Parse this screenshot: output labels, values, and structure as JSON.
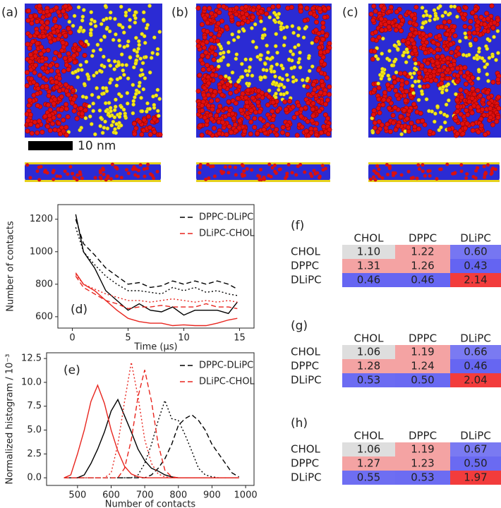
{
  "figure": {
    "panel_labels": [
      "(a)",
      "(b)",
      "(c)"
    ],
    "scale_bar": "10 nm"
  },
  "chart_data": [
    {
      "type": "line",
      "label": "(d)",
      "xlabel": "Time (μs)",
      "ylabel": "Number of contacts",
      "x": [
        0.3,
        1,
        2,
        3,
        4,
        5,
        6,
        7,
        8,
        9,
        10,
        11,
        12,
        13,
        14,
        14.8
      ],
      "xlim": [
        -1.3,
        16.3
      ],
      "xticks": [
        0,
        5,
        10,
        15
      ],
      "ylim": [
        530,
        1290
      ],
      "yticks": [
        600,
        800,
        1000,
        1200
      ],
      "legend": "upper right",
      "series": [
        {
          "name": "DPPC-DLiPC",
          "color": "#000000",
          "lines": [
            {
              "dash": "solid",
              "values": [
                1230,
                1000,
                900,
                760,
                700,
                640,
                680,
                640,
                630,
                660,
                610,
                640,
                640,
                640,
                620,
                690
              ]
            },
            {
              "dash": "dashed",
              "values": [
                1200,
                1050,
                980,
                900,
                850,
                800,
                810,
                780,
                790,
                820,
                800,
                820,
                800,
                820,
                800,
                770
              ]
            },
            {
              "dash": "dotted",
              "values": [
                1150,
                1000,
                920,
                850,
                800,
                760,
                760,
                750,
                740,
                780,
                760,
                780,
                750,
                760,
                740,
                730
              ]
            }
          ]
        },
        {
          "name": "DLiPC-CHOL",
          "color": "#e8251e",
          "lines": [
            {
              "dash": "solid",
              "values": [
                870,
                800,
                760,
                700,
                640,
                590,
                570,
                560,
                560,
                545,
                550,
                545,
                545,
                560,
                580,
                590
              ]
            },
            {
              "dash": "dashed",
              "values": [
                850,
                780,
                740,
                700,
                680,
                650,
                660,
                660,
                670,
                660,
                660,
                660,
                680,
                660,
                660,
                650
              ]
            },
            {
              "dash": "dotted",
              "values": [
                860,
                800,
                770,
                740,
                720,
                700,
                700,
                690,
                700,
                710,
                700,
                690,
                700,
                690,
                700,
                690
              ]
            }
          ]
        }
      ]
    },
    {
      "type": "line",
      "label": "(e)",
      "xlabel": "Number of contacts",
      "ylabel": "Normalized histogram / 10⁻³",
      "x": [
        460,
        480,
        500,
        520,
        540,
        560,
        580,
        600,
        620,
        640,
        660,
        680,
        700,
        720,
        740,
        760,
        780,
        800,
        820,
        840,
        860,
        880,
        900,
        920,
        940,
        960,
        980
      ],
      "xlim": [
        408,
        1025
      ],
      "xticks": [
        500,
        600,
        700,
        800,
        900,
        1000
      ],
      "ylim": [
        -0.8,
        13.1
      ],
      "yticks": [
        {
          "value": 0,
          "label": "0.0"
        },
        2.5,
        {
          "value": 5,
          "label": "5.0"
        },
        7.5,
        {
          "value": 10,
          "label": "10.0"
        },
        12.5
      ],
      "legend": "upper right",
      "series": [
        {
          "name": "DPPC-DLiPC",
          "color": "#000000",
          "lines": [
            {
              "dash": "solid",
              "values": [
                0,
                0,
                0,
                0.3,
                1.5,
                3.0,
                4.8,
                7.0,
                8.2,
                6.5,
                4.8,
                3.0,
                1.8,
                1.0,
                0.7,
                0.3,
                0.1,
                0,
                0,
                0,
                0,
                0,
                0,
                0,
                0,
                0,
                0
              ]
            },
            {
              "dash": "dashed",
              "values": [
                0,
                0,
                0,
                0,
                0,
                0,
                0,
                0,
                0,
                0,
                0,
                0,
                0,
                0.3,
                1.0,
                2.0,
                3.5,
                5.5,
                6.2,
                6.6,
                6.0,
                5.0,
                3.5,
                2.5,
                1.5,
                0.5,
                0.1
              ]
            },
            {
              "dash": "dotted",
              "values": [
                0,
                0,
                0,
                0,
                0,
                0,
                0,
                0,
                0,
                0,
                0,
                0.3,
                1.5,
                3.5,
                6.0,
                8.1,
                6.2,
                6.0,
                4.5,
                2.8,
                1.0,
                0.3,
                0.1,
                0,
                0,
                0,
                0
              ]
            }
          ]
        },
        {
          "name": "DLiPC-CHOL",
          "color": "#e8251e",
          "lines": [
            {
              "dash": "solid",
              "values": [
                0,
                0.3,
                2.5,
                5.0,
                8.0,
                9.7,
                7.8,
                5.0,
                2.8,
                1.2,
                0.4,
                0.1,
                0,
                0,
                0,
                0,
                0,
                0,
                0,
                0,
                0,
                0,
                0,
                0,
                0,
                0,
                0
              ]
            },
            {
              "dash": "dashed",
              "values": [
                0,
                0,
                0,
                0,
                0,
                0,
                0,
                0,
                0,
                1.0,
                4.0,
                8.5,
                11.3,
                8.0,
                3.5,
                0.8,
                0.1,
                0,
                0,
                0,
                0,
                0,
                0,
                0,
                0,
                0,
                0
              ]
            },
            {
              "dash": "dotted",
              "values": [
                0,
                0,
                0,
                0,
                0,
                0,
                0,
                0.5,
                3.5,
                8.0,
                12.1,
                8.5,
                4.0,
                1.5,
                0.4,
                0.1,
                0,
                0,
                0,
                0,
                0,
                0,
                0,
                0,
                0,
                0,
                0
              ]
            }
          ]
        }
      ]
    }
  ],
  "tables": [
    {
      "label": "(f)",
      "columns": [
        "CHOL",
        "DPPC",
        "DLiPC"
      ],
      "rows": [
        {
          "name": "CHOL",
          "values": [
            "1.10",
            "1.22",
            "0.60"
          ]
        },
        {
          "name": "DPPC",
          "values": [
            "1.31",
            "1.26",
            "0.43"
          ]
        },
        {
          "name": "DLiPC",
          "values": [
            "0.46",
            "0.46",
            "2.14"
          ]
        }
      ],
      "colors": [
        [
          "#dedede",
          "#f4a3a3",
          "#7676f2"
        ],
        [
          "#f4a3a3",
          "#f4a3a3",
          "#6464f2"
        ],
        [
          "#6666f2",
          "#6666f2",
          "#f23c3c"
        ]
      ]
    },
    {
      "label": "(g)",
      "columns": [
        "CHOL",
        "DPPC",
        "DLiPC"
      ],
      "rows": [
        {
          "name": "CHOL",
          "values": [
            "1.06",
            "1.19",
            "0.66"
          ]
        },
        {
          "name": "DPPC",
          "values": [
            "1.28",
            "1.24",
            "0.46"
          ]
        },
        {
          "name": "DLiPC",
          "values": [
            "0.53",
            "0.50",
            "2.04"
          ]
        }
      ],
      "colors": [
        [
          "#dedede",
          "#f4a3a3",
          "#7a7af2"
        ],
        [
          "#f4a3a3",
          "#f4a3a3",
          "#6666f2"
        ],
        [
          "#6c6cf2",
          "#6a6af2",
          "#f23c3c"
        ]
      ]
    },
    {
      "label": "(h)",
      "columns": [
        "CHOL",
        "DPPC",
        "DLiPC"
      ],
      "rows": [
        {
          "name": "CHOL",
          "values": [
            "1.06",
            "1.19",
            "0.67"
          ]
        },
        {
          "name": "DPPC",
          "values": [
            "1.27",
            "1.23",
            "0.50"
          ]
        },
        {
          "name": "DLiPC",
          "values": [
            "0.55",
            "0.53",
            "1.97"
          ]
        }
      ],
      "colors": [
        [
          "#dedede",
          "#f4a3a3",
          "#7a7af2"
        ],
        [
          "#f4a3a3",
          "#f4a3a3",
          "#6a6af2"
        ],
        [
          "#6e6ef2",
          "#6c6cf2",
          "#f23c3c"
        ]
      ]
    }
  ]
}
